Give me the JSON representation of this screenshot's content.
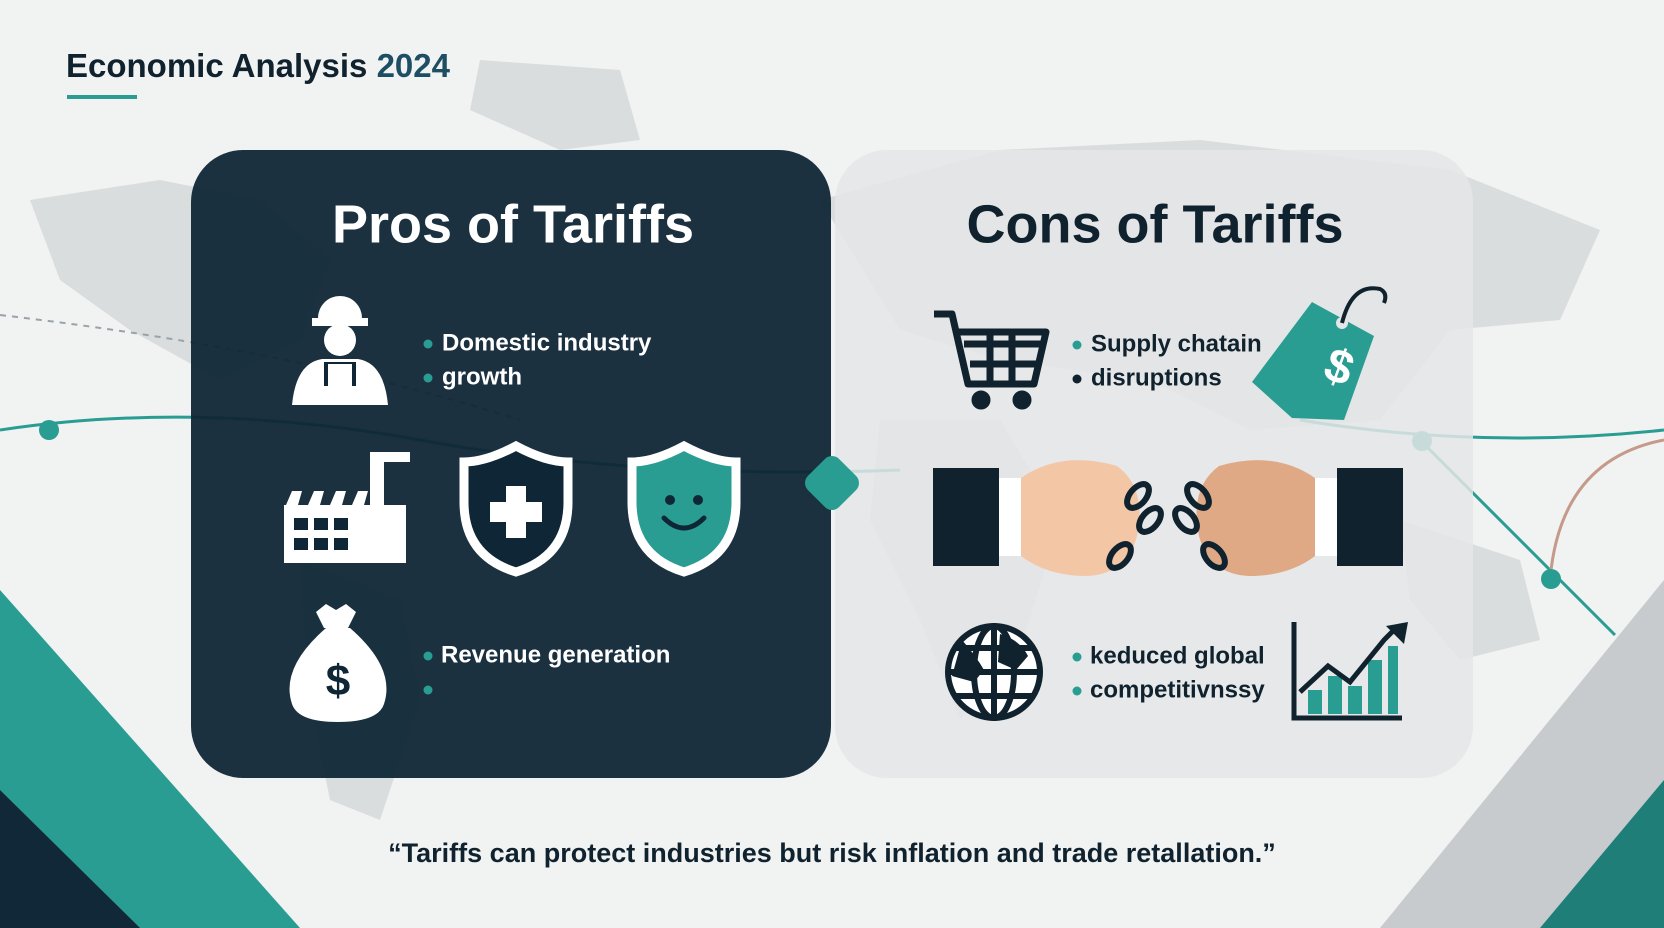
{
  "header": {
    "title": "Economic Analysis",
    "year": "2024"
  },
  "pros": {
    "title": "Pros of Tariffs",
    "items": [
      "Domestic industry",
      "growth",
      "Revenue generation"
    ]
  },
  "cons": {
    "title": "Cons of Tariffs",
    "items": [
      "Supply chatain",
      "disruptions",
      "keduced global",
      "competitivnssy"
    ]
  },
  "quote": "“Tariffs can protect industries but risk inflation and trade retallation.”"
}
